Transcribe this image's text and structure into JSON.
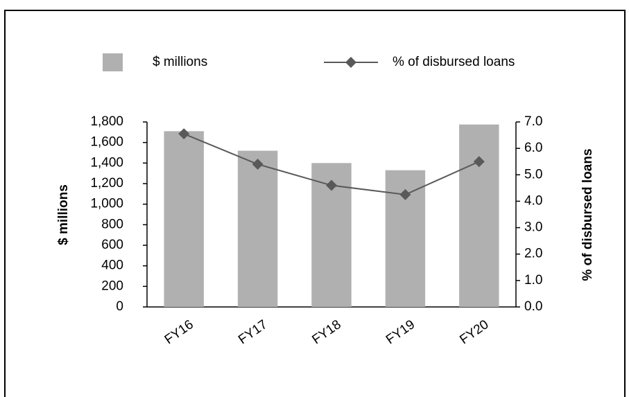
{
  "chart_data": {
    "type": "bar_line",
    "categories": [
      "FY16",
      "FY17",
      "FY18",
      "FY19",
      "FY20"
    ],
    "series": [
      {
        "name": "$ millions",
        "type": "bar",
        "color": "#b0b0b0",
        "values": [
          1710,
          1520,
          1400,
          1330,
          1775
        ]
      },
      {
        "name": "% of disbursed loans",
        "type": "line",
        "color": "#595959",
        "axis": "y2",
        "values": [
          6.55,
          5.4,
          4.6,
          4.25,
          5.5
        ]
      }
    ],
    "y_label": "$ millions",
    "y2_label": "% of disbursed loans",
    "ylim": [
      0,
      1800
    ],
    "yticks": [
      0,
      200,
      400,
      600,
      800,
      {
        "value": 1000,
        "label": "1,000"
      },
      {
        "value": 1200,
        "label": "1,200"
      },
      {
        "value": 1400,
        "label": "1,400"
      },
      {
        "value": 1600,
        "label": "1,600"
      },
      {
        "value": 1800,
        "label": "1,800"
      }
    ],
    "y2lim": [
      0,
      7
    ],
    "y2ticks": [
      {
        "value": 0,
        "label": "0.0"
      },
      {
        "value": 1,
        "label": "1.0"
      },
      {
        "value": 2,
        "label": "2.0"
      },
      {
        "value": 3,
        "label": "3.0"
      },
      {
        "value": 4,
        "label": "4.0"
      },
      {
        "value": 5,
        "label": "5.0"
      },
      {
        "value": 6,
        "label": "6.0"
      },
      {
        "value": 7,
        "label": "7.0"
      }
    ],
    "legend": "top",
    "grid": false
  }
}
